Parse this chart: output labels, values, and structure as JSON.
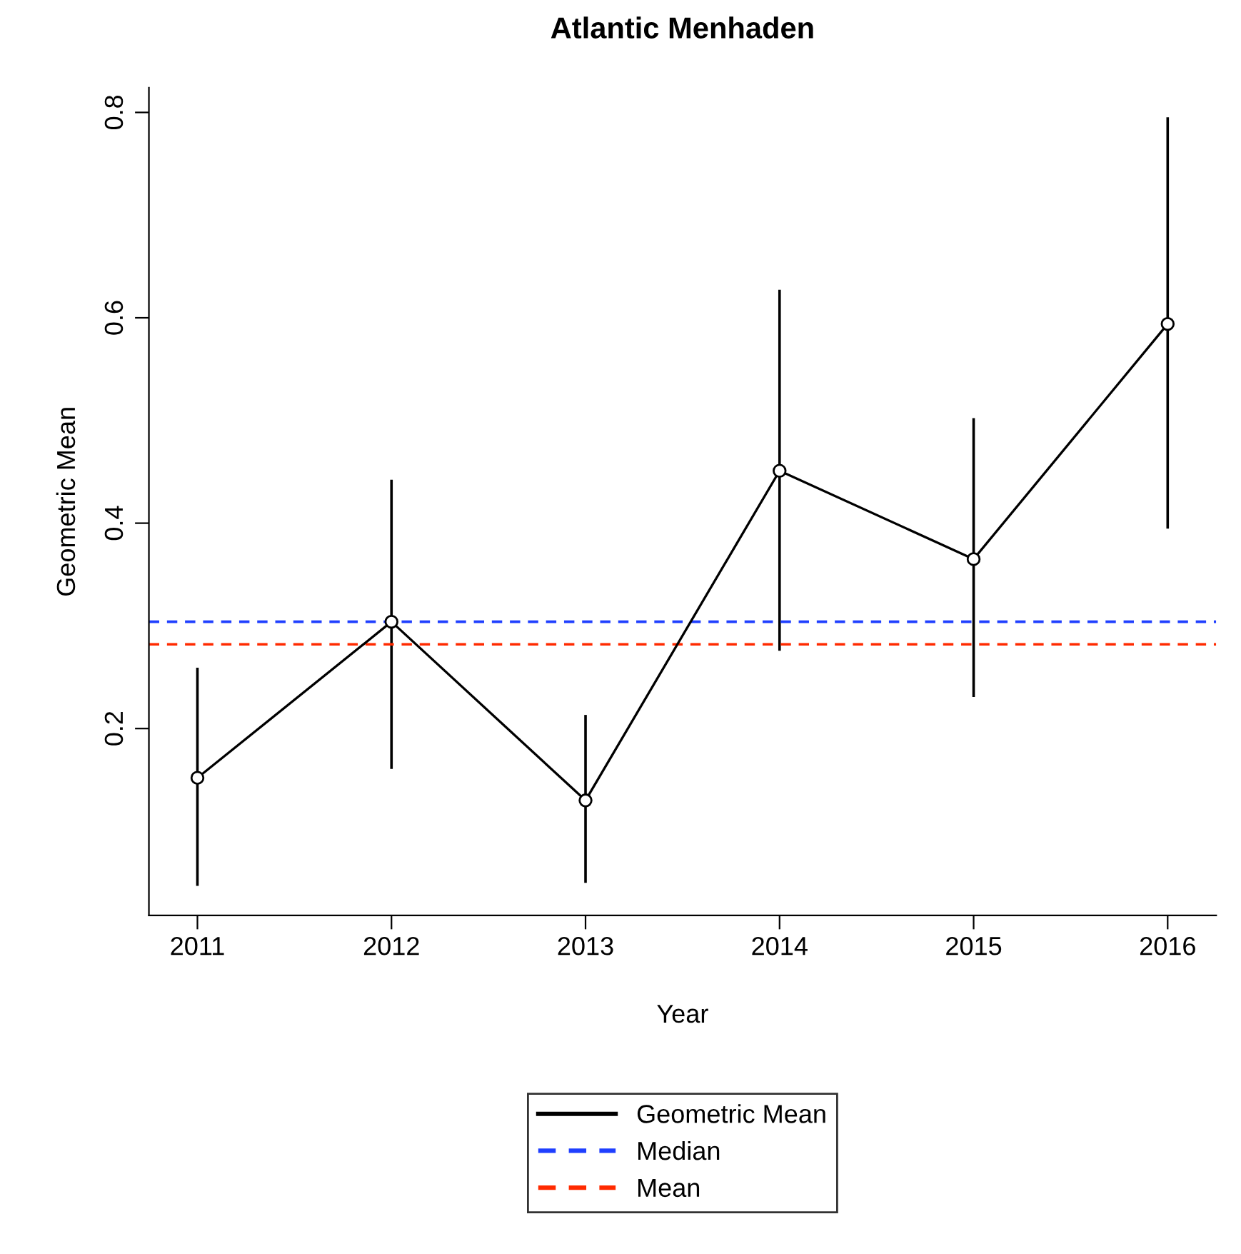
{
  "chart_data": {
    "type": "line",
    "title": "Atlantic Menhaden",
    "xlabel": "Year",
    "ylabel": "Geometric Mean",
    "categories": [
      "2011",
      "2012",
      "2013",
      "2014",
      "2015",
      "2016"
    ],
    "series": [
      {
        "name": "Geometric Mean",
        "color": "#000000",
        "values": [
          0.152,
          0.304,
          0.13,
          0.451,
          0.365,
          0.594
        ],
        "errors": [
          [
            0.048,
            0.258
          ],
          [
            0.162,
            0.441
          ],
          [
            0.051,
            0.212
          ],
          [
            0.277,
            0.626
          ],
          [
            0.232,
            0.501
          ],
          [
            0.396,
            0.794
          ]
        ]
      }
    ],
    "ylim": [
      0.018,
      0.824
    ],
    "yticks": [
      0.2,
      0.4,
      0.6,
      0.8
    ],
    "ref_lines": [
      {
        "axis": "y",
        "value": 0.304,
        "label": "Median",
        "color": "#1f3fff",
        "line_style": "dashed"
      },
      {
        "axis": "y",
        "value": 0.282,
        "label": "Mean",
        "color": "#ff2a00",
        "line_style": "dashed"
      }
    ],
    "marker": "circle",
    "line_style": "solid",
    "grid": false,
    "legend": "bottom"
  }
}
